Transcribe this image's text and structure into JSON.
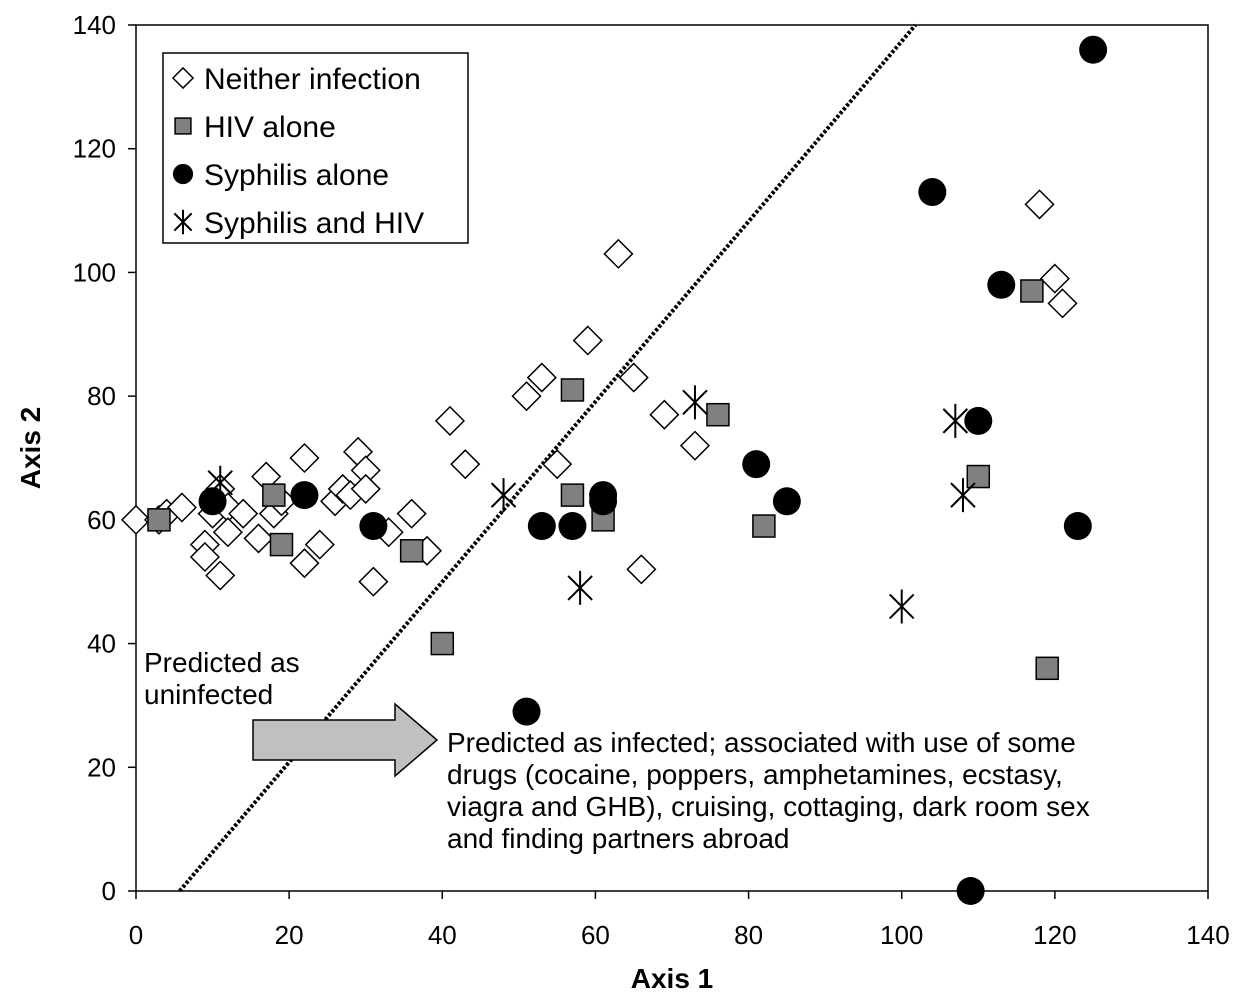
{
  "chart_data": {
    "type": "scatter",
    "xlabel": "Axis 1",
    "ylabel": "Axis 2",
    "xlim": [
      0,
      140
    ],
    "ylim": [
      0,
      140
    ],
    "xticks": [
      "0",
      "20",
      "40",
      "60",
      "80",
      "100",
      "120",
      "140"
    ],
    "yticks": [
      "0",
      "20",
      "40",
      "60",
      "80",
      "100",
      "120",
      "140"
    ],
    "grid": false,
    "legend_position": "top-left",
    "series": [
      {
        "name": "Neither infection",
        "marker": "diamond",
        "points": [
          [
            0,
            60
          ],
          [
            3,
            60
          ],
          [
            4,
            61
          ],
          [
            6,
            62
          ],
          [
            9,
            56
          ],
          [
            9,
            54
          ],
          [
            10,
            61
          ],
          [
            11,
            51
          ],
          [
            11,
            65
          ],
          [
            12,
            62
          ],
          [
            12,
            58
          ],
          [
            14,
            61
          ],
          [
            16,
            57
          ],
          [
            17,
            67
          ],
          [
            18,
            61
          ],
          [
            19,
            63
          ],
          [
            22,
            70
          ],
          [
            22,
            53
          ],
          [
            24,
            56
          ],
          [
            26,
            63
          ],
          [
            27,
            65
          ],
          [
            28,
            64
          ],
          [
            29,
            71
          ],
          [
            30,
            68
          ],
          [
            30,
            65
          ],
          [
            31,
            50
          ],
          [
            33,
            58
          ],
          [
            36,
            61
          ],
          [
            38,
            55
          ],
          [
            41,
            76
          ],
          [
            43,
            69
          ],
          [
            51,
            80
          ],
          [
            53,
            83
          ],
          [
            55,
            69
          ],
          [
            59,
            89
          ],
          [
            63,
            103
          ],
          [
            65,
            83
          ],
          [
            66,
            52
          ],
          [
            69,
            77
          ],
          [
            73,
            72
          ],
          [
            118,
            111
          ],
          [
            120,
            99
          ],
          [
            121,
            95
          ]
        ]
      },
      {
        "name": "HIV alone",
        "marker": "square",
        "points": [
          [
            3,
            60
          ],
          [
            18,
            64
          ],
          [
            19,
            56
          ],
          [
            36,
            55
          ],
          [
            40,
            40
          ],
          [
            57,
            81
          ],
          [
            57,
            64
          ],
          [
            61,
            60
          ],
          [
            76,
            77
          ],
          [
            82,
            59
          ],
          [
            110,
            67
          ],
          [
            117,
            97
          ],
          [
            119,
            36
          ]
        ]
      },
      {
        "name": "Syphilis alone",
        "marker": "circle",
        "points": [
          [
            10,
            63
          ],
          [
            22,
            64
          ],
          [
            31,
            59
          ],
          [
            51,
            29
          ],
          [
            53,
            59
          ],
          [
            57,
            59
          ],
          [
            61,
            63
          ],
          [
            61,
            64
          ],
          [
            81,
            69
          ],
          [
            85,
            63
          ],
          [
            104,
            113
          ],
          [
            109,
            0
          ],
          [
            110,
            76
          ],
          [
            113,
            98
          ],
          [
            123,
            59
          ],
          [
            125,
            136
          ]
        ]
      },
      {
        "name": "Syphilis and HIV",
        "marker": "asterisk",
        "points": [
          [
            11,
            66
          ],
          [
            48,
            64
          ],
          [
            58,
            49
          ],
          [
            73,
            79
          ],
          [
            100,
            46
          ],
          [
            107,
            76
          ],
          [
            108,
            64
          ]
        ]
      }
    ],
    "divider_line": {
      "x": [
        5.7,
        101.8
      ],
      "y": [
        0,
        140
      ]
    },
    "annotations": {
      "left": [
        "Predicted as",
        "uninfected"
      ],
      "right": [
        "Predicted as infected; associated with use of some",
        "drugs (cocaine, poppers, amphetamines, ecstasy,",
        "viagra and GHB), cruising, cottaging, dark room sex",
        "and finding partners abroad"
      ]
    }
  },
  "colors": {
    "neither_fill": "#ffffff",
    "hiv_fill": "#808080",
    "syphilis_fill": "#000000",
    "arrow_fill": "#c0c0c0"
  }
}
